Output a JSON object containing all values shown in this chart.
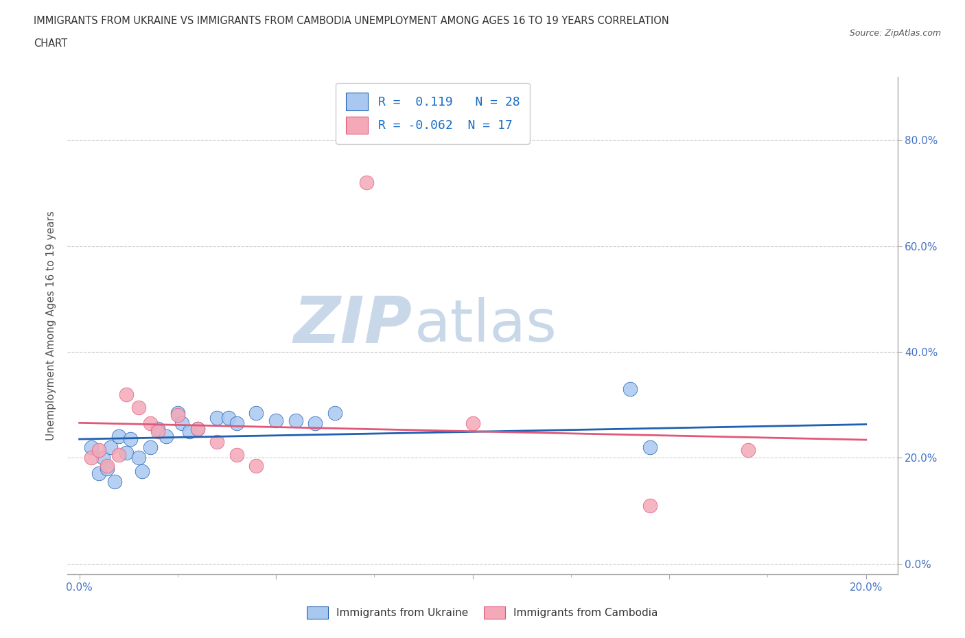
{
  "title_line1": "IMMIGRANTS FROM UKRAINE VS IMMIGRANTS FROM CAMBODIA UNEMPLOYMENT AMONG AGES 16 TO 19 YEARS CORRELATION",
  "title_line2": "CHART",
  "source_text": "Source: ZipAtlas.com",
  "ylabel": "Unemployment Among Ages 16 to 19 years",
  "ukraine_color": "#a8c8f0",
  "cambodia_color": "#f4a8b8",
  "ukraine_line_color": "#2060b0",
  "cambodia_line_color": "#e05878",
  "background_color": "#ffffff",
  "watermark_zip": "ZIP",
  "watermark_atlas": "atlas",
  "watermark_color": "#c8d8e8",
  "R_ukraine": 0.119,
  "N_ukraine": 28,
  "R_cambodia": -0.062,
  "N_cambodia": 17,
  "ukraine_x": [
    0.003,
    0.005,
    0.006,
    0.007,
    0.008,
    0.009,
    0.01,
    0.012,
    0.013,
    0.015,
    0.016,
    0.018,
    0.02,
    0.022,
    0.025,
    0.026,
    0.028,
    0.03,
    0.035,
    0.038,
    0.04,
    0.045,
    0.05,
    0.055,
    0.06,
    0.065,
    0.14,
    0.145
  ],
  "ukraine_y": [
    0.22,
    0.17,
    0.2,
    0.18,
    0.22,
    0.155,
    0.24,
    0.21,
    0.235,
    0.2,
    0.175,
    0.22,
    0.255,
    0.24,
    0.285,
    0.265,
    0.25,
    0.255,
    0.275,
    0.275,
    0.265,
    0.285,
    0.27,
    0.27,
    0.265,
    0.285,
    0.33,
    0.22
  ],
  "cambodia_x": [
    0.003,
    0.005,
    0.007,
    0.01,
    0.012,
    0.015,
    0.018,
    0.02,
    0.025,
    0.03,
    0.035,
    0.04,
    0.045,
    0.073,
    0.1,
    0.145,
    0.17
  ],
  "cambodia_y": [
    0.2,
    0.215,
    0.185,
    0.205,
    0.32,
    0.295,
    0.265,
    0.25,
    0.28,
    0.255,
    0.23,
    0.205,
    0.185,
    0.72,
    0.265,
    0.11,
    0.215
  ],
  "xlim_min": -0.003,
  "xlim_max": 0.208,
  "ylim_min": -0.02,
  "ylim_max": 0.92,
  "y_ticks": [
    0.0,
    0.2,
    0.4,
    0.6,
    0.8
  ],
  "y_tick_labels": [
    "0.0%",
    "20.0%",
    "40.0%",
    "60.0%",
    "80.0%"
  ],
  "x_ticks": [
    0.0,
    0.025,
    0.05,
    0.075,
    0.1,
    0.125,
    0.15,
    0.175,
    0.2
  ],
  "x_tick_labels_show": {
    "0.0": "0.0%",
    "0.2": "20.0%"
  }
}
